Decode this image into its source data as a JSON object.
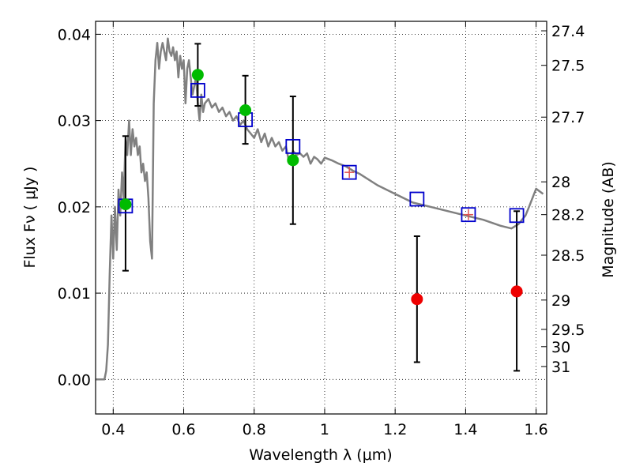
{
  "chart_data": {
    "type": "scatter",
    "xlabel": "Wavelength  λ (μm)",
    "ylabel": "Flux  Fν  ( μJy )",
    "y2label": "Magnitude (AB)",
    "xlim": [
      0.35,
      1.63
    ],
    "ylim": [
      -0.004,
      0.0415
    ],
    "grid": true,
    "x_ticks": [
      {
        "value": 0.4,
        "label": "0.4"
      },
      {
        "value": 0.6,
        "label": "0.6"
      },
      {
        "value": 0.8,
        "label": "0.8"
      },
      {
        "value": 1.0,
        "label": "1"
      },
      {
        "value": 1.2,
        "label": "1.2"
      },
      {
        "value": 1.4,
        "label": "1.4"
      },
      {
        "value": 1.6,
        "label": "1.6"
      }
    ],
    "y_ticks": [
      {
        "value": 0.0,
        "label": "0.00"
      },
      {
        "value": 0.01,
        "label": "0.01"
      },
      {
        "value": 0.02,
        "label": "0.02"
      },
      {
        "value": 0.03,
        "label": "0.03"
      },
      {
        "value": 0.04,
        "label": "0.04"
      }
    ],
    "y2_ticks": [
      {
        "label": "27.4",
        "flux": 0.0404
      },
      {
        "label": "27.5",
        "flux": 0.0364
      },
      {
        "label": "27.7",
        "flux": 0.0304
      },
      {
        "label": "28",
        "flux": 0.0229
      },
      {
        "label": "28.2",
        "flux": 0.0191
      },
      {
        "label": "28.5",
        "flux": 0.0144
      },
      {
        "label": "29",
        "flux": 0.0092
      },
      {
        "label": "29.5",
        "flux": 0.0058
      },
      {
        "label": "30",
        "flux": 0.0038
      },
      {
        "label": "31",
        "flux": 0.0015
      }
    ],
    "template_spectrum": {
      "color": "#808080",
      "x": [
        0.35,
        0.375,
        0.38,
        0.385,
        0.39,
        0.395,
        0.4,
        0.405,
        0.41,
        0.415,
        0.42,
        0.425,
        0.43,
        0.435,
        0.44,
        0.445,
        0.45,
        0.455,
        0.46,
        0.465,
        0.47,
        0.475,
        0.48,
        0.485,
        0.49,
        0.495,
        0.5,
        0.505,
        0.51,
        0.515,
        0.52,
        0.525,
        0.53,
        0.535,
        0.54,
        0.545,
        0.55,
        0.555,
        0.56,
        0.565,
        0.57,
        0.575,
        0.58,
        0.585,
        0.59,
        0.595,
        0.6,
        0.605,
        0.61,
        0.615,
        0.62,
        0.625,
        0.63,
        0.635,
        0.64,
        0.645,
        0.65,
        0.655,
        0.66,
        0.67,
        0.68,
        0.69,
        0.7,
        0.71,
        0.72,
        0.73,
        0.74,
        0.75,
        0.76,
        0.77,
        0.78,
        0.79,
        0.8,
        0.81,
        0.82,
        0.83,
        0.84,
        0.85,
        0.86,
        0.87,
        0.88,
        0.89,
        0.9,
        0.91,
        0.92,
        0.93,
        0.94,
        0.95,
        0.96,
        0.97,
        0.98,
        0.99,
        1.0,
        1.02,
        1.04,
        1.06,
        1.08,
        1.1,
        1.15,
        1.2,
        1.25,
        1.3,
        1.35,
        1.4,
        1.45,
        1.5,
        1.53,
        1.55,
        1.57,
        1.58,
        1.6,
        1.62
      ],
      "y": [
        0.0,
        0.0,
        0.001,
        0.004,
        0.012,
        0.019,
        0.014,
        0.02,
        0.015,
        0.022,
        0.019,
        0.024,
        0.021,
        0.028,
        0.026,
        0.03,
        0.026,
        0.029,
        0.027,
        0.028,
        0.026,
        0.027,
        0.024,
        0.025,
        0.023,
        0.024,
        0.021,
        0.016,
        0.014,
        0.032,
        0.037,
        0.039,
        0.036,
        0.038,
        0.039,
        0.038,
        0.037,
        0.0395,
        0.038,
        0.0375,
        0.0385,
        0.037,
        0.038,
        0.035,
        0.0375,
        0.036,
        0.037,
        0.032,
        0.036,
        0.037,
        0.035,
        0.033,
        0.034,
        0.035,
        0.032,
        0.03,
        0.033,
        0.031,
        0.032,
        0.0325,
        0.0315,
        0.032,
        0.031,
        0.0315,
        0.0305,
        0.031,
        0.03,
        0.0305,
        0.0295,
        0.03,
        0.029,
        0.0285,
        0.028,
        0.029,
        0.0275,
        0.0285,
        0.027,
        0.028,
        0.027,
        0.0275,
        0.0265,
        0.027,
        0.025,
        0.0265,
        0.026,
        0.0262,
        0.0258,
        0.0262,
        0.025,
        0.0258,
        0.0255,
        0.025,
        0.0257,
        0.0254,
        0.025,
        0.0247,
        0.0242,
        0.0238,
        0.0225,
        0.0215,
        0.0205,
        0.02,
        0.0195,
        0.019,
        0.0185,
        0.0178,
        0.0175,
        0.018,
        0.019,
        0.02,
        0.0221,
        0.0215
      ]
    },
    "series": [
      {
        "name": "",
        "marker": "square",
        "color": "#0000cc",
        "x": [
          0.435,
          0.64,
          0.775,
          0.91,
          1.07,
          1.262,
          1.408,
          1.545
        ],
        "y": [
          0.0201,
          0.0335,
          0.0301,
          0.027,
          0.024,
          0.0209,
          0.0191,
          0.019
        ]
      },
      {
        "name": "",
        "marker": "circle",
        "color": "#00bb00",
        "x": [
          0.435,
          0.64,
          0.775,
          0.91
        ],
        "y": [
          0.0203,
          0.0353,
          0.0312,
          0.0254
        ],
        "yerr_low": [
          0.0077,
          0.0036,
          0.0039,
          0.0074
        ],
        "yerr_high": [
          0.0079,
          0.0036,
          0.004,
          0.0074
        ]
      },
      {
        "name": "",
        "marker": "circle",
        "color": "#ee0000",
        "x": [
          1.262,
          1.545
        ],
        "y": [
          0.0093,
          0.0102
        ],
        "yerr_low": [
          0.0073,
          0.0092
        ],
        "yerr_high": [
          0.0073,
          0.0093
        ]
      }
    ],
    "extra_errorbars": [
      {
        "x": 1.07,
        "y": 0.024
      },
      {
        "x": 1.408,
        "y": 0.0191
      }
    ]
  }
}
